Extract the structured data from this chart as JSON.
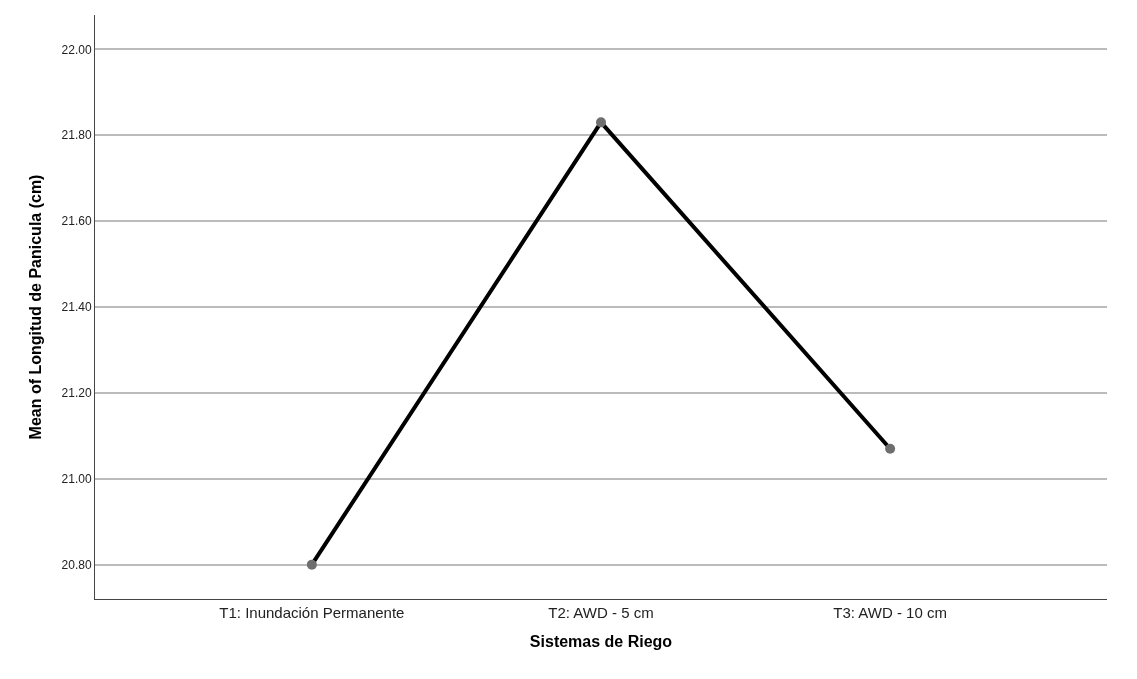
{
  "chart_data": {
    "type": "line",
    "xlabel": "Sistemas de Riego",
    "ylabel": "Mean of Longitud de Panicula (cm)",
    "categories": [
      "T1: Inundación Permanente",
      "T2: AWD - 5 cm",
      "T3: AWD - 10 cm"
    ],
    "series": [
      {
        "color": "#000000",
        "values": [
          20.8,
          21.83,
          21.07
        ]
      }
    ],
    "ylim": [
      20.72,
      22.08
    ],
    "yticks": [
      {
        "value": 20.8,
        "label": "20.80"
      },
      {
        "value": 21.0,
        "label": "21.00"
      },
      {
        "value": 21.2,
        "label": "21.20"
      },
      {
        "value": 21.4,
        "label": "21.40"
      },
      {
        "value": 21.6,
        "label": "21.60"
      },
      {
        "value": 21.8,
        "label": "21.80"
      },
      {
        "value": 22.0,
        "label": "22.00"
      }
    ],
    "grid": "y",
    "marker": "circle",
    "line_style": "solid",
    "legend": false
  }
}
